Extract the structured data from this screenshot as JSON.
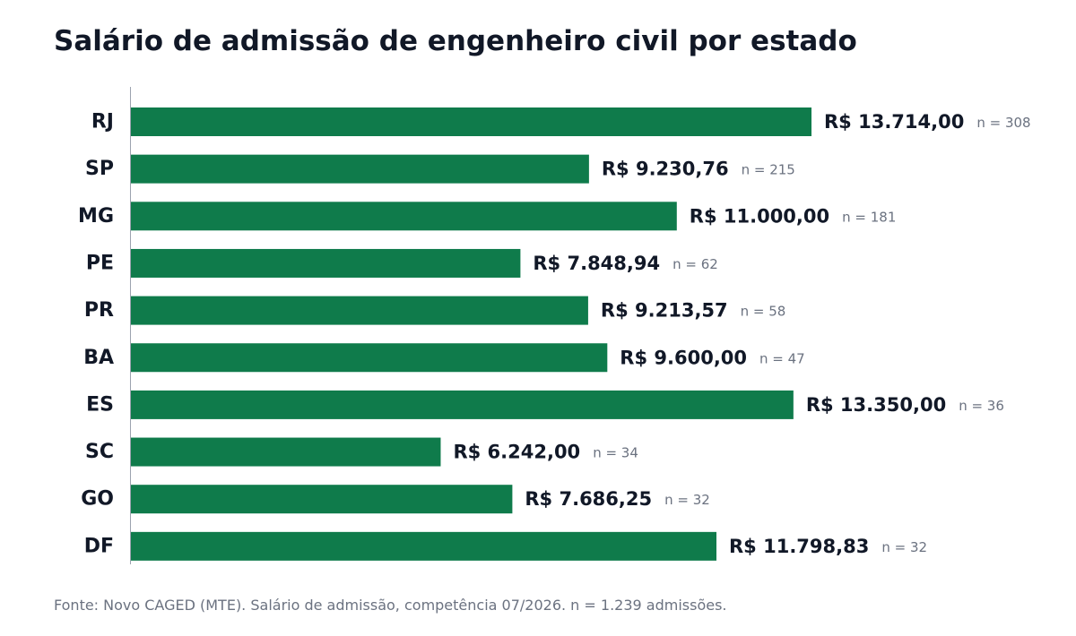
{
  "title": "Salário de admissão de engenheiro civil por estado",
  "footer": "Fonte: Novo CAGED (MTE). Salário de admissão, competência 07/2026. n = 1.239 admissões.",
  "colors": {
    "bar": "#0f7b4b",
    "axis": "#9ca3af",
    "label": "#111827",
    "n_label": "#6b7280"
  },
  "chart_data": {
    "type": "bar",
    "orientation": "horizontal",
    "title": "Salário de admissão de engenheiro civil por estado",
    "categories": [
      "RJ",
      "SP",
      "MG",
      "PE",
      "PR",
      "BA",
      "ES",
      "SC",
      "GO",
      "DF"
    ],
    "values": [
      13714.0,
      9230.76,
      11000.0,
      7848.94,
      9213.57,
      9600.0,
      13350.0,
      6242.0,
      7686.25,
      11798.83
    ],
    "value_labels": [
      "R$ 13.714,00",
      "R$ 9.230,76",
      "R$ 11.000,00",
      "R$ 7.848,94",
      "R$ 9.213,57",
      "R$ 9.600,00",
      "R$ 13.350,00",
      "R$ 6.242,00",
      "R$ 7.686,25",
      "R$ 11.798,83"
    ],
    "n_labels": [
      "n = 308",
      "n = 215",
      "n = 181",
      "n = 62",
      "n = 58",
      "n = 47",
      "n = 36",
      "n = 34",
      "n = 32",
      "n = 32"
    ],
    "xlim": [
      0,
      13714
    ],
    "grid": false,
    "legend": "none"
  }
}
